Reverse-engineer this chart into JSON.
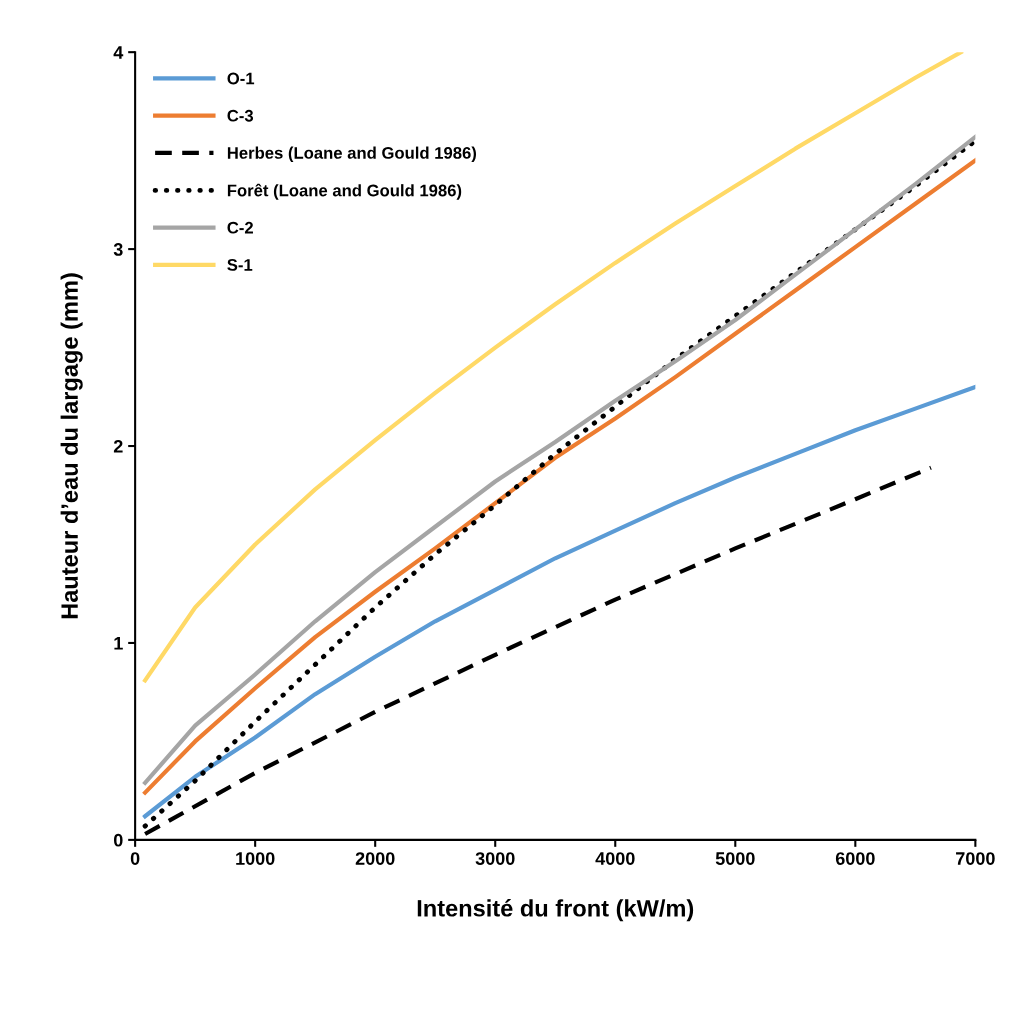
{
  "chart_data": {
    "type": "line",
    "xlabel": "Intensité du front (kW/m)",
    "ylabel": "Hauteur d’eau du largage (mm)",
    "xlim": [
      0,
      7000
    ],
    "xticks": [
      0,
      1000,
      2000,
      3000,
      4000,
      5000,
      6000,
      7000
    ],
    "ylim": [
      0,
      4
    ],
    "yticks": [
      0,
      1,
      2,
      3,
      4
    ],
    "grid": false,
    "legend": "top left",
    "marker": "none",
    "series": [
      {
        "name": "O-1",
        "color": "#5b9bd5",
        "line_style": "solid",
        "x": [
          83,
          500,
          1000,
          1500,
          2000,
          2500,
          3000,
          3500,
          4000,
          4500,
          5000,
          5500,
          6000,
          6500,
          7000
        ],
        "values": [
          0.12,
          0.32,
          0.52,
          0.74,
          0.93,
          1.11,
          1.27,
          1.43,
          1.57,
          1.71,
          1.84,
          1.96,
          2.08,
          2.19,
          2.3
        ]
      },
      {
        "name": "C-3",
        "color": "#ed7d31",
        "line_style": "solid",
        "x": [
          83,
          500,
          1000,
          1500,
          2000,
          2500,
          3000,
          3500,
          4000,
          4500,
          5000,
          5500,
          6000,
          6500,
          7000
        ],
        "values": [
          0.24,
          0.5,
          0.77,
          1.03,
          1.26,
          1.48,
          1.71,
          1.94,
          2.14,
          2.35,
          2.57,
          2.79,
          3.01,
          3.23,
          3.45
        ]
      },
      {
        "name": "Herbes (Loane and Gould 1986)",
        "color": "#000000",
        "line_style": "dashed",
        "x": [
          83,
          1000,
          2000,
          3000,
          4000,
          5000,
          6000,
          6630
        ],
        "values": [
          0.03,
          0.34,
          0.65,
          0.94,
          1.22,
          1.48,
          1.73,
          1.89
        ]
      },
      {
        "name": "Forêt (Loane and Gould 1986)",
        "color": "#000000",
        "line_style": "dotted",
        "x": [
          83,
          500,
          1000,
          1500,
          2000,
          2500,
          3000,
          3500,
          4000,
          4500,
          5000,
          5500,
          6000,
          6500,
          7000
        ],
        "values": [
          0.07,
          0.3,
          0.6,
          0.89,
          1.18,
          1.45,
          1.7,
          1.96,
          2.2,
          2.44,
          2.66,
          2.88,
          3.1,
          3.32,
          3.55
        ]
      },
      {
        "name": "C-2",
        "color": "#a5a5a5",
        "line_style": "solid",
        "x": [
          83,
          500,
          1000,
          1500,
          2000,
          2500,
          3000,
          3500,
          4000,
          4500,
          5000,
          5500,
          6000,
          6500,
          7000
        ],
        "values": [
          0.29,
          0.58,
          0.84,
          1.11,
          1.36,
          1.59,
          1.82,
          2.02,
          2.23,
          2.43,
          2.64,
          2.87,
          3.1,
          3.33,
          3.57
        ]
      },
      {
        "name": "S-1",
        "color": "#ffd966",
        "line_style": "solid",
        "x": [
          83,
          500,
          1000,
          1500,
          2000,
          2500,
          3000,
          3500,
          4000,
          4500,
          5000,
          5500,
          6000,
          6500,
          6880
        ],
        "values": [
          0.81,
          1.18,
          1.5,
          1.78,
          2.03,
          2.27,
          2.5,
          2.72,
          2.93,
          3.13,
          3.32,
          3.51,
          3.69,
          3.87,
          4.0
        ]
      }
    ]
  }
}
